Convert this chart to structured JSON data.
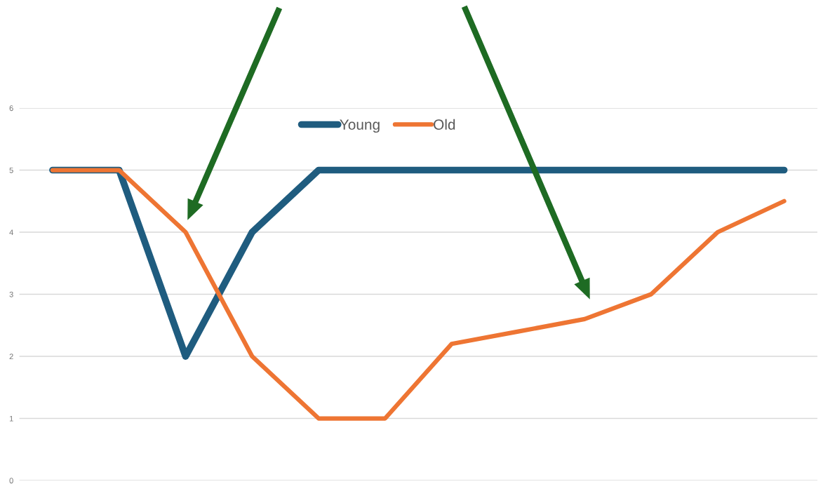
{
  "chart_data": {
    "type": "line",
    "categories": [
      null,
      null,
      null,
      null,
      null,
      null,
      null,
      null,
      null,
      null,
      null,
      null
    ],
    "series": [
      {
        "name": "Young",
        "color": "#1f5c7f",
        "values": [
          5,
          5,
          2,
          4,
          5,
          5,
          5,
          5,
          5,
          5,
          5,
          5
        ]
      },
      {
        "name": "Old",
        "color": "#ee7533",
        "values": [
          5,
          5,
          4,
          2,
          1,
          1,
          2.2,
          2.4,
          2.6,
          3,
          4,
          4.5
        ]
      }
    ],
    "ylim": [
      0,
      6
    ],
    "yticks": [
      0,
      1,
      2,
      3,
      4,
      5,
      6
    ],
    "grid": "y",
    "legend": "top",
    "tick_labels": "y",
    "marker": "none",
    "line_style": "solid"
  }
}
